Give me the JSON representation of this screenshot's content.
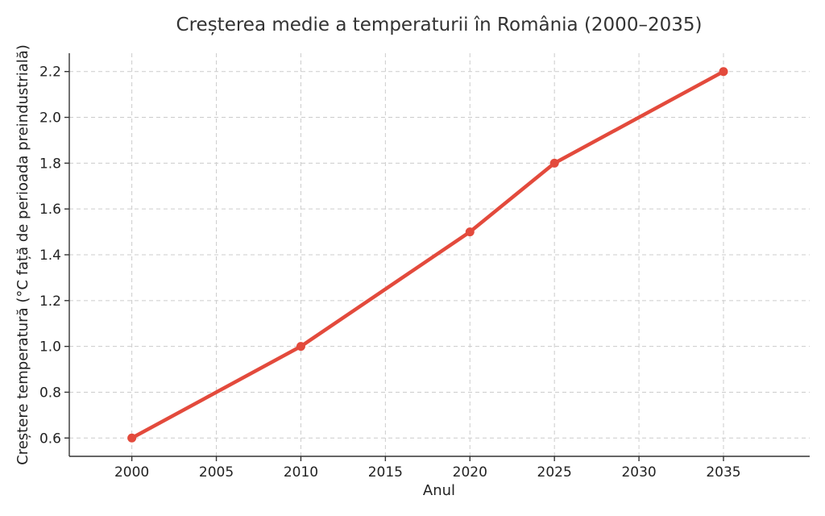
{
  "chart_data": {
    "type": "line",
    "title": "Creșterea medie a temperaturii în România (2000–2035)",
    "xlabel": "Anul",
    "ylabel": "Creștere temperatură (°C față de perioada preindustrială)",
    "x_ticks": [
      2000,
      2005,
      2010,
      2015,
      2020,
      2025,
      2030,
      2035
    ],
    "y_ticks": [
      0.6,
      0.8,
      1.0,
      1.2,
      1.4,
      1.6,
      1.8,
      2.0,
      2.2
    ],
    "xlim": [
      1996.3,
      2040.1
    ],
    "ylim": [
      0.52,
      2.28
    ],
    "grid": true,
    "series": [
      {
        "color": "#e34a3c",
        "x": [
          2000,
          2010,
          2020,
          2025,
          2035
        ],
        "y": [
          0.6,
          1.0,
          1.5,
          1.8,
          2.2
        ]
      }
    ]
  }
}
